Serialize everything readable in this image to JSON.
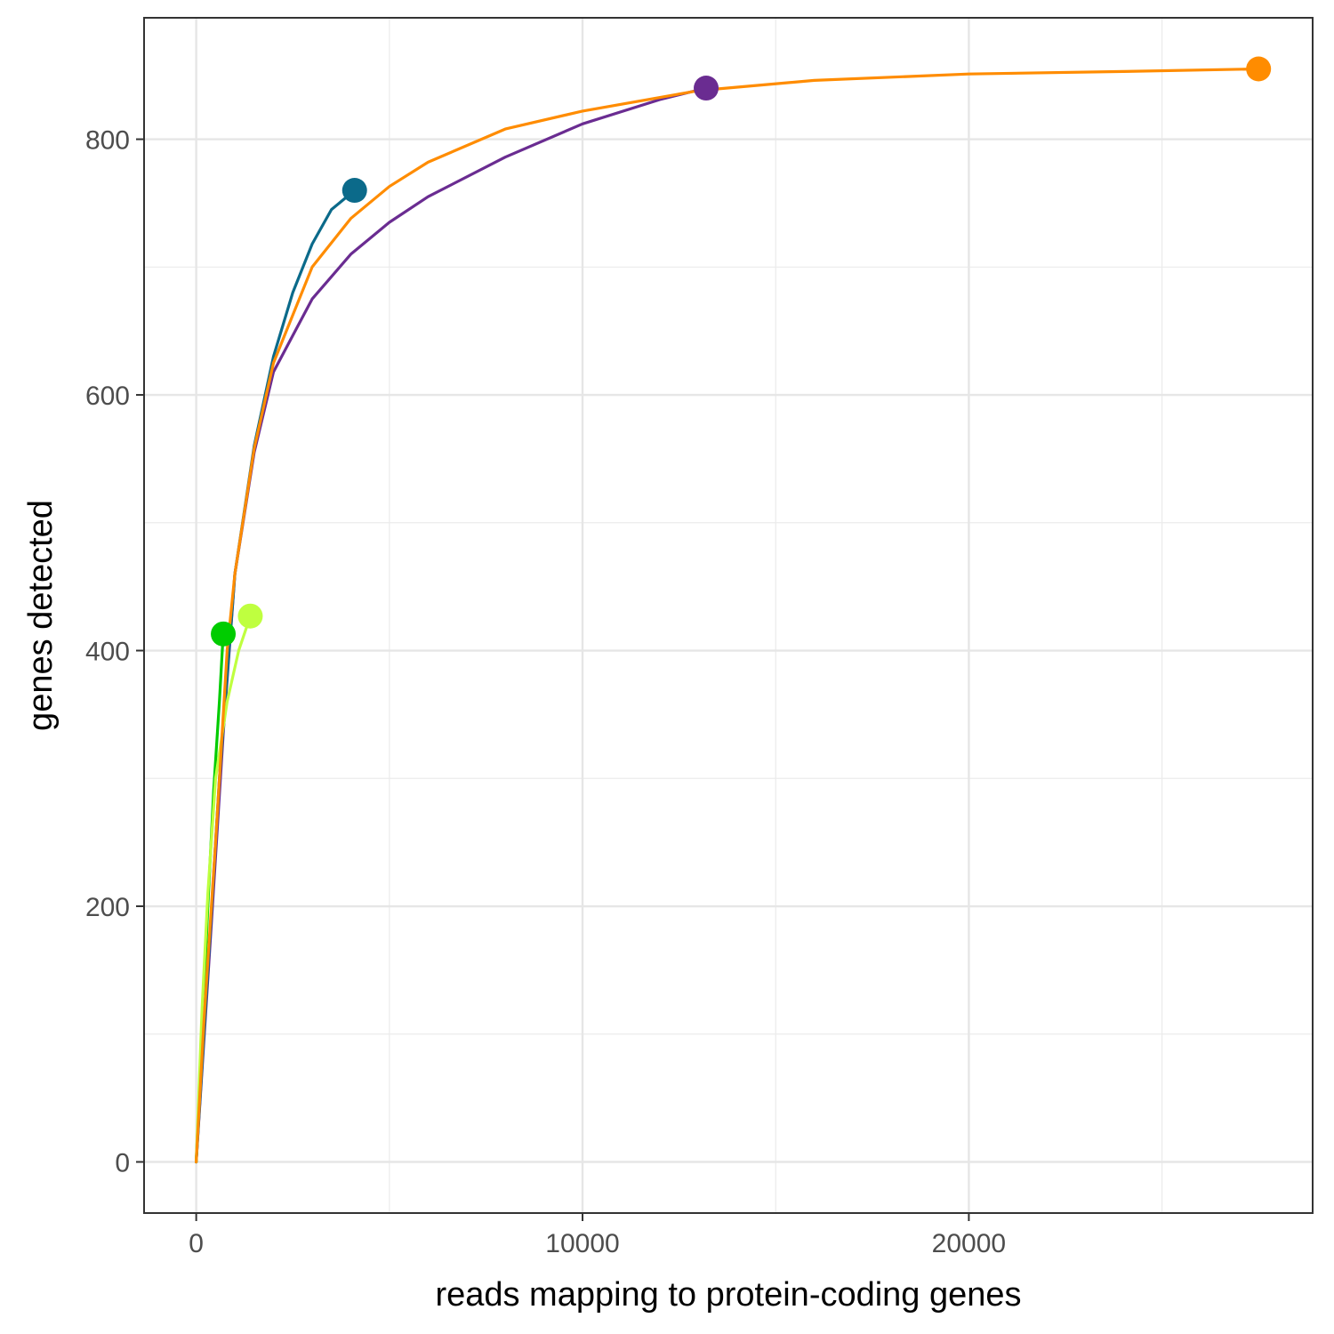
{
  "chart_data": {
    "type": "line",
    "title": "",
    "xlabel": "reads mapping to protein-coding genes",
    "ylabel": "genes detected",
    "xlim": [
      -1350,
      28900
    ],
    "ylim": [
      -40,
      895
    ],
    "x_ticks": [
      0,
      10000,
      20000
    ],
    "x_tick_labels": [
      "0",
      "10000",
      "20000"
    ],
    "y_ticks": [
      0,
      200,
      400,
      600,
      800
    ],
    "y_tick_labels": [
      "0",
      "200",
      "400",
      "600",
      "800"
    ],
    "grid": true,
    "legend": "none",
    "series": [
      {
        "color": "#6a2c91",
        "points": [
          [
            0,
            0
          ],
          [
            200,
            95
          ],
          [
            400,
            190
          ],
          [
            700,
            335
          ],
          [
            1000,
            460
          ],
          [
            1500,
            555
          ],
          [
            2000,
            618
          ],
          [
            3000,
            675
          ],
          [
            4000,
            710
          ],
          [
            5000,
            735
          ],
          [
            6000,
            755
          ],
          [
            8000,
            786
          ],
          [
            10000,
            812
          ],
          [
            12000,
            831
          ],
          [
            13200,
            840
          ]
        ],
        "end_point": [
          13200,
          840
        ]
      },
      {
        "color": "#0b6a8a",
        "points": [
          [
            0,
            0
          ],
          [
            300,
            150
          ],
          [
            600,
            300
          ],
          [
            1000,
            460
          ],
          [
            1500,
            560
          ],
          [
            2000,
            630
          ],
          [
            2500,
            680
          ],
          [
            3000,
            718
          ],
          [
            3500,
            745
          ],
          [
            4100,
            760
          ]
        ],
        "end_point": [
          4100,
          760
        ]
      },
      {
        "color": "#00cc00",
        "points": [
          [
            0,
            0
          ],
          [
            150,
            100
          ],
          [
            300,
            200
          ],
          [
            450,
            290
          ],
          [
            600,
            360
          ],
          [
            700,
            413
          ]
        ],
        "end_point": [
          700,
          413
        ]
      },
      {
        "color": "#bfff3f",
        "points": [
          [
            0,
            0
          ],
          [
            150,
            120
          ],
          [
            300,
            210
          ],
          [
            500,
            300
          ],
          [
            800,
            360
          ],
          [
            1100,
            400
          ],
          [
            1400,
            427
          ]
        ],
        "end_point": [
          1400,
          427
        ]
      },
      {
        "color": "#ff8c00",
        "points": [
          [
            0,
            0
          ],
          [
            200,
            110
          ],
          [
            500,
            250
          ],
          [
            800,
            400
          ],
          [
            1000,
            460
          ],
          [
            1500,
            558
          ],
          [
            2000,
            625
          ],
          [
            3000,
            700
          ],
          [
            4000,
            738
          ],
          [
            5000,
            763
          ],
          [
            6000,
            782
          ],
          [
            8000,
            808
          ],
          [
            10000,
            822
          ],
          [
            13000,
            838
          ],
          [
            16000,
            846
          ],
          [
            20000,
            851
          ],
          [
            24000,
            853
          ],
          [
            27500,
            855
          ]
        ],
        "end_point": [
          27500,
          855
        ]
      }
    ]
  }
}
